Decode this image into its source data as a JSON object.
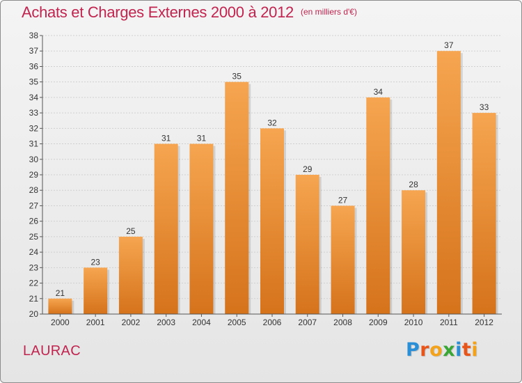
{
  "header": {
    "title": "Achats et Charges Externes 2000 à 2012",
    "unit": "(en milliers d'€)"
  },
  "footer": {
    "commune": "LAURAC",
    "brand_letters": [
      {
        "ch": "P",
        "color": "#2a8fd6"
      },
      {
        "ch": "r",
        "color": "#e8551a"
      },
      {
        "ch": "o",
        "color": "#f2a21b"
      },
      {
        "ch": "x",
        "color": "#3aa635"
      },
      {
        "ch": "i",
        "color": "#2a8fd6"
      },
      {
        "ch": "t",
        "color": "#e8551a"
      },
      {
        "ch": "i",
        "color": "#f2a21b"
      }
    ]
  },
  "colors": {
    "accent": "#c0244f",
    "bar_top": "#f6a550",
    "bar_bottom": "#d5731b",
    "axis": "#555555",
    "grid": "#cfcfcf"
  },
  "chart_data": {
    "type": "bar",
    "title": "Achats et Charges Externes 2000 à 2012",
    "subtitle": "(en milliers d'€)",
    "xlabel": "",
    "ylabel": "",
    "categories": [
      "2000",
      "2001",
      "2002",
      "2003",
      "2004",
      "2005",
      "2006",
      "2007",
      "2008",
      "2009",
      "2010",
      "2011",
      "2012"
    ],
    "values": [
      21,
      23,
      25,
      31,
      31,
      35,
      32,
      29,
      27,
      34,
      28,
      37,
      33
    ],
    "ylim": [
      20,
      38
    ],
    "yticks": [
      20,
      21,
      22,
      23,
      24,
      25,
      26,
      27,
      28,
      29,
      30,
      31,
      32,
      33,
      34,
      35,
      36,
      37,
      38
    ],
    "grid": true,
    "data_labels": true,
    "legend": "none"
  }
}
